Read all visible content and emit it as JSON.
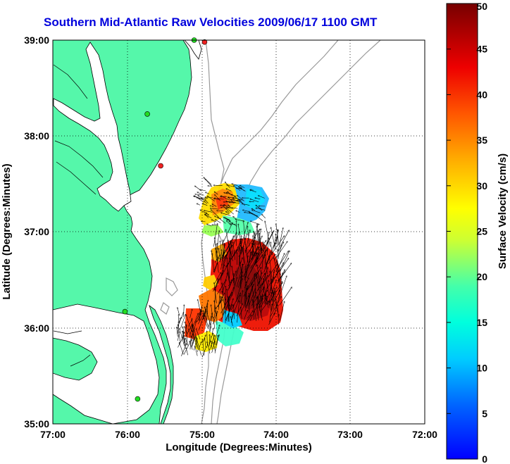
{
  "title": "Southern Mid-Atlantic Raw Velocities 2009/06/17 1100 GMT",
  "xlabel": "Longitude (Degrees:Minutes)",
  "ylabel": "Latitude (Degrees:Minutes)",
  "x_ticks": [
    "77:00",
    "76:00",
    "75:00",
    "74:00",
    "73:00",
    "72:00"
  ],
  "y_ticks": [
    "39:00",
    "38:00",
    "37:00",
    "36:00",
    "35:00"
  ],
  "colorbar": {
    "label": "Surface Velocity (cm/s)",
    "ticks": [
      "0",
      "5",
      "10",
      "15",
      "20",
      "25",
      "30",
      "35",
      "40",
      "45",
      "50"
    ],
    "range": [
      0,
      50
    ]
  },
  "colors": {
    "land": "#55f7aa",
    "coast": "#000000",
    "bathymetry": "#999999",
    "grid": "#000000",
    "title": "#0000dd",
    "station_green": "#22dd22",
    "station_red": "#ee2222"
  },
  "map": {
    "lon_range": [
      -77,
      -72
    ],
    "lat_range": [
      35,
      39
    ],
    "grid": "dotted"
  },
  "stations": [
    {
      "lon": -75.86,
      "lat": 35.26,
      "status": "green"
    },
    {
      "lon": -76.03,
      "lat": 36.17,
      "status": "green"
    },
    {
      "lon": -75.73,
      "lat": 38.23,
      "status": "green"
    },
    {
      "lon": -75.55,
      "lat": 37.69,
      "status": "red"
    },
    {
      "lon": -75.1,
      "lat": 39.0,
      "status": "green"
    },
    {
      "lon": -74.96,
      "lat": 38.98,
      "status": "red"
    }
  ]
}
